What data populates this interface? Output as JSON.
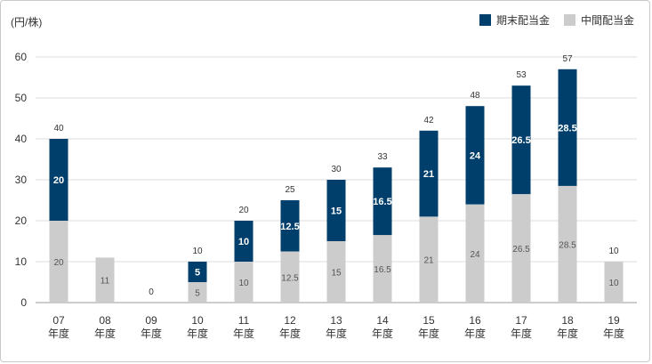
{
  "chart_data": {
    "type": "bar",
    "stacked": true,
    "unit_label": "(円/株)",
    "categories": [
      {
        "year": "07",
        "suffix": "年度"
      },
      {
        "year": "08",
        "suffix": "年度"
      },
      {
        "year": "09",
        "suffix": "年度"
      },
      {
        "year": "10",
        "suffix": "年度"
      },
      {
        "year": "11",
        "suffix": "年度"
      },
      {
        "year": "12",
        "suffix": "年度"
      },
      {
        "year": "13",
        "suffix": "年度"
      },
      {
        "year": "14",
        "suffix": "年度"
      },
      {
        "year": "15",
        "suffix": "年度"
      },
      {
        "year": "16",
        "suffix": "年度"
      },
      {
        "year": "17",
        "suffix": "年度"
      },
      {
        "year": "18",
        "suffix": "年度"
      },
      {
        "year": "19",
        "suffix": "年度"
      }
    ],
    "series": [
      {
        "name": "中間配当金",
        "color": "#cccccc",
        "values": [
          20,
          11,
          0,
          5,
          10,
          12.5,
          15,
          16.5,
          21,
          24,
          26.5,
          28.5,
          10
        ]
      },
      {
        "name": "期末配当金",
        "color": "#003f6b",
        "values": [
          20,
          0,
          0,
          5,
          10,
          12.5,
          15,
          16.5,
          21,
          24,
          26.5,
          28.5,
          0
        ]
      }
    ],
    "interim_labels": [
      "20",
      "11",
      "",
      "5",
      "10",
      "12.5",
      "15",
      "16.5",
      "21",
      "24",
      "26.5",
      "28.5",
      "10"
    ],
    "final_labels": [
      "20",
      "",
      "",
      "5",
      "10",
      "12.5",
      "15",
      "16.5",
      "21",
      "24",
      "26.5",
      "28.5",
      ""
    ],
    "total_labels": [
      "40",
      "",
      "0",
      "10",
      "20",
      "25",
      "30",
      "33",
      "42",
      "48",
      "53",
      "57",
      "10"
    ],
    "legend": [
      {
        "name": "期末配当金",
        "color": "#003f6b"
      },
      {
        "name": "中間配当金",
        "color": "#cccccc"
      }
    ],
    "ylim": [
      0,
      60
    ],
    "yticks": [
      0,
      10,
      20,
      30,
      40,
      50,
      60
    ],
    "legend_position": "top-right",
    "grid": true
  }
}
